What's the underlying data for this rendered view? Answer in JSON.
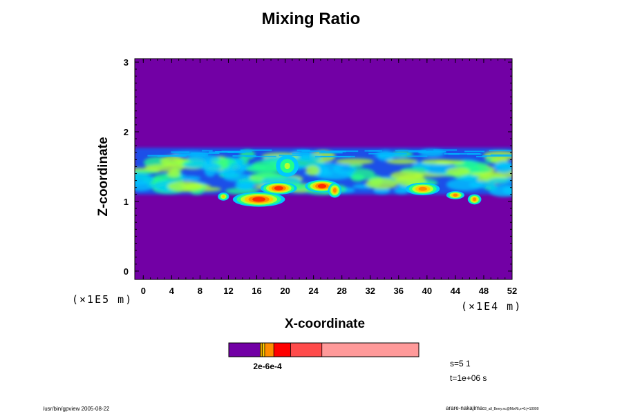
{
  "chart_data": {
    "type": "heatmap",
    "title": "Mixing Ratio",
    "xlabel": "X-coordinate",
    "ylabel": "Z-coordinate",
    "xunit": "(×1E4 m)",
    "yunit": "(×1E5 m)",
    "xlim": [
      -1.2,
      52
    ],
    "ylim": [
      -0.12,
      3.05
    ],
    "xticks": [
      "0",
      "4",
      "8",
      "12",
      "16",
      "20",
      "24",
      "28",
      "32",
      "36",
      "40",
      "44",
      "48",
      "52"
    ],
    "yticks": [
      "0",
      "1",
      "2",
      "3"
    ],
    "background_color": "#7200a5",
    "cloud_band": {
      "base": 1.1,
      "top": 1.77
    },
    "blobs": [
      {
        "x": 16.3,
        "z": 1.03,
        "rx": 2.3,
        "rz": 0.06,
        "level": 5
      },
      {
        "x": 19.1,
        "z": 1.19,
        "rx": 1.6,
        "rz": 0.05,
        "level": 5
      },
      {
        "x": 25.2,
        "z": 1.22,
        "rx": 1.5,
        "rz": 0.05,
        "level": 5
      },
      {
        "x": 39.4,
        "z": 1.18,
        "rx": 1.5,
        "rz": 0.05,
        "level": 4
      },
      {
        "x": 44.0,
        "z": 1.09,
        "rx": 0.8,
        "rz": 0.03,
        "level": 4
      },
      {
        "x": 46.7,
        "z": 1.03,
        "rx": 0.6,
        "rz": 0.04,
        "level": 4
      },
      {
        "x": 11.3,
        "z": 1.07,
        "rx": 0.5,
        "rz": 0.03,
        "level": 3
      },
      {
        "x": 20.3,
        "z": 1.51,
        "rx": 1.0,
        "rz": 0.09,
        "level": 2
      },
      {
        "x": 27.0,
        "z": 1.16,
        "rx": 0.6,
        "rz": 0.06,
        "level": 4
      }
    ],
    "colorbar": {
      "segments": [
        {
          "color": "#7200a5",
          "fraction": 0.165
        },
        {
          "color": "#e0a000",
          "fraction": 0.012
        },
        {
          "color": "#ffd200",
          "fraction": 0.012
        },
        {
          "color": "#ff8c00",
          "fraction": 0.048
        },
        {
          "color": "#ff0000",
          "fraction": 0.088
        },
        {
          "color": "#ff4b4b",
          "fraction": 0.165
        },
        {
          "color": "#ff9a9a",
          "fraction": 0.51
        }
      ],
      "tick_label": "2e-6e-4"
    },
    "level_colors": [
      "#00c8ff",
      "#22ff8a",
      "#b6ff30",
      "#ffcc00",
      "#ff8800",
      "#ff2a00"
    ],
    "stats": {
      "s": "s=5 1",
      "t": "t=1e+06 s"
    }
  },
  "footer": {
    "left": "/usr/bin/gpview 2005-08-22",
    "right_main": "arare-nakajima",
    "right_small": "03_all_Berry.nc@MixRt,x=0:j=10000"
  }
}
